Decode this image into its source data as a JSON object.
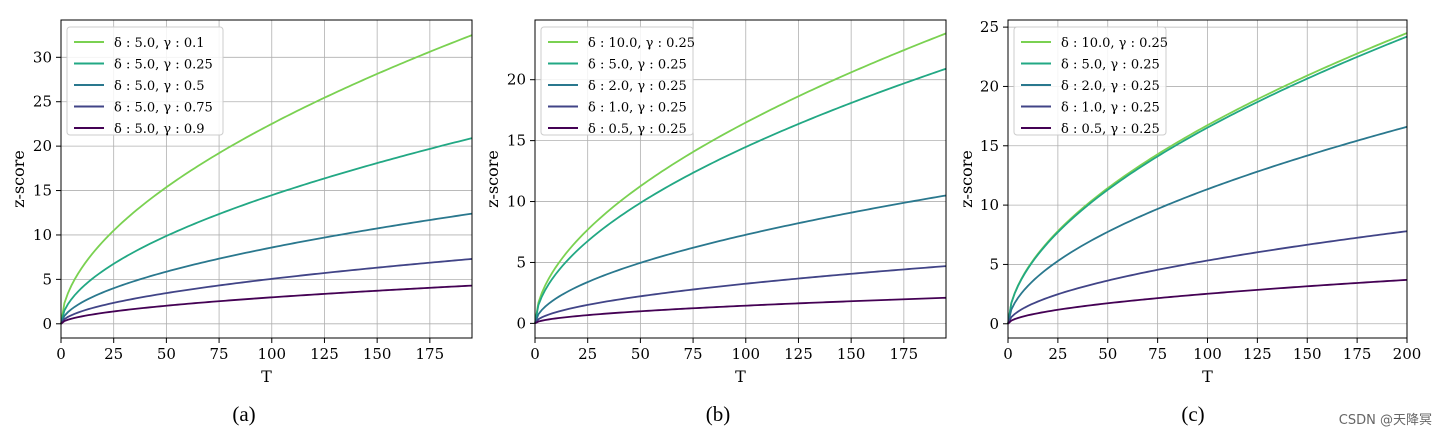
{
  "chart_data": [
    {
      "type": "line",
      "caption": "(a)",
      "xlabel": "T",
      "ylabel": "z-score",
      "xlim": [
        0,
        195
      ],
      "ylim": [
        -1.6,
        34.2
      ],
      "xticks": [
        0,
        25,
        50,
        75,
        100,
        125,
        150,
        175
      ],
      "yticks": [
        0,
        5,
        10,
        15,
        20,
        25,
        30
      ],
      "grid": true,
      "legend_position": "top-left",
      "x_max_data": 195,
      "series": [
        {
          "name": "δ : 5.0, γ : 0.1",
          "color": "#7ad151",
          "x": [
            0,
            195
          ],
          "end_value": 32.5
        },
        {
          "name": "δ : 5.0, γ : 0.25",
          "color": "#22a884",
          "x": [
            0,
            195
          ],
          "end_value": 20.9
        },
        {
          "name": "δ : 5.0, γ : 0.5",
          "color": "#2a788e",
          "x": [
            0,
            195
          ],
          "end_value": 12.4
        },
        {
          "name": "δ : 5.0, γ : 0.75",
          "color": "#414487",
          "x": [
            0,
            195
          ],
          "end_value": 7.3
        },
        {
          "name": "δ : 5.0, γ : 0.9",
          "color": "#440154",
          "x": [
            0,
            195
          ],
          "end_value": 4.3
        }
      ]
    },
    {
      "type": "line",
      "caption": "(b)",
      "xlabel": "T",
      "ylabel": "z-score",
      "xlim": [
        0,
        195
      ],
      "ylim": [
        -1.2,
        24.9
      ],
      "xticks": [
        0,
        25,
        50,
        75,
        100,
        125,
        150,
        175
      ],
      "yticks": [
        0,
        5,
        10,
        15,
        20
      ],
      "grid": true,
      "legend_position": "top-left",
      "x_max_data": 195,
      "series": [
        {
          "name": "δ : 10.0, γ : 0.25",
          "color": "#7ad151",
          "x": [
            0,
            195
          ],
          "end_value": 23.8
        },
        {
          "name": "δ : 5.0, γ : 0.25",
          "color": "#22a884",
          "x": [
            0,
            195
          ],
          "end_value": 20.9
        },
        {
          "name": "δ : 2.0, γ : 0.25",
          "color": "#2a788e",
          "x": [
            0,
            195
          ],
          "end_value": 10.5
        },
        {
          "name": "δ : 1.0, γ : 0.25",
          "color": "#414487",
          "x": [
            0,
            195
          ],
          "end_value": 4.7
        },
        {
          "name": "δ : 0.5, γ : 0.25",
          "color": "#440154",
          "x": [
            0,
            195
          ],
          "end_value": 2.1
        }
      ]
    },
    {
      "type": "line",
      "caption": "(c)",
      "xlabel": "T",
      "ylabel": "z-score",
      "xlim": [
        0,
        200
      ],
      "ylim": [
        -1.2,
        25.6
      ],
      "xticks": [
        0,
        25,
        50,
        75,
        100,
        125,
        150,
        175,
        200
      ],
      "yticks": [
        0,
        5,
        10,
        15,
        20,
        25
      ],
      "grid": true,
      "legend_position": "top-left",
      "x_max_data": 200,
      "series": [
        {
          "name": "δ : 10.0, γ : 0.25",
          "color": "#7ad151",
          "x": [
            0,
            200
          ],
          "end_value": 24.5
        },
        {
          "name": "δ : 5.0, γ : 0.25",
          "color": "#22a884",
          "x": [
            0,
            200
          ],
          "end_value": 24.2
        },
        {
          "name": "δ : 2.0, γ : 0.25",
          "color": "#2a788e",
          "x": [
            0,
            200
          ],
          "end_value": 16.6
        },
        {
          "name": "δ : 1.0, γ : 0.25",
          "color": "#414487",
          "x": [
            0,
            200
          ],
          "end_value": 7.8
        },
        {
          "name": "δ : 0.5, γ : 0.25",
          "color": "#440154",
          "x": [
            0,
            200
          ],
          "end_value": 3.7
        }
      ]
    }
  ],
  "watermark": "CSDN @天降冥"
}
